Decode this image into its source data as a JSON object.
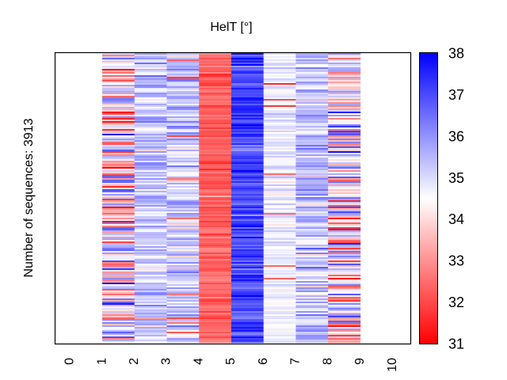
{
  "chart_data": {
    "type": "heatmap",
    "title": "HelT [°]",
    "xlabel": "",
    "ylabel": "Number of sequences: 3913",
    "x_ticks": [
      "0",
      "1",
      "2",
      "3",
      "4",
      "5",
      "6",
      "7",
      "8",
      "9",
      "10"
    ],
    "xlim": [
      -0.45,
      10.55
    ],
    "n_sequences": 3913,
    "colormap": "bwr",
    "colorbar": {
      "range": [
        31,
        38
      ],
      "ticks": [
        "31",
        "32",
        "33",
        "34",
        "35",
        "36",
        "37",
        "38"
      ],
      "low_color": "#ff0000",
      "mid_color": "#ffffff",
      "high_color": "#0000ff"
    },
    "columns": [
      {
        "position": 1,
        "x_range": [
          1,
          2
        ],
        "mean": 34.3,
        "spread": 1.6,
        "note": "mixed red/blue"
      },
      {
        "position": 2,
        "x_range": [
          2,
          3
        ],
        "mean": 35.3,
        "spread": 0.6,
        "note": "light blue"
      },
      {
        "position": 3,
        "x_range": [
          3,
          4
        ],
        "mean": 35.2,
        "spread": 0.6,
        "note": "light lavender, occasional red"
      },
      {
        "position": 4,
        "x_range": [
          4,
          5
        ],
        "mean": 32.3,
        "spread": 0.35,
        "note": "red"
      },
      {
        "position": 5,
        "x_range": [
          5,
          6
        ],
        "mean": 37.1,
        "spread": 0.45,
        "note": "blue"
      },
      {
        "position": 6,
        "x_range": [
          6,
          7
        ],
        "mean": 34.7,
        "spread": 0.3,
        "note": "near white, rare red lines"
      },
      {
        "position": 7,
        "x_range": [
          7,
          8
        ],
        "mean": 35.4,
        "spread": 0.6,
        "note": "light blue with pink"
      },
      {
        "position": 8,
        "x_range": [
          8,
          9
        ],
        "mean": 34.2,
        "spread": 1.5,
        "note": "strongly mixed red/blue"
      }
    ],
    "grid": false,
    "legend": "none"
  }
}
